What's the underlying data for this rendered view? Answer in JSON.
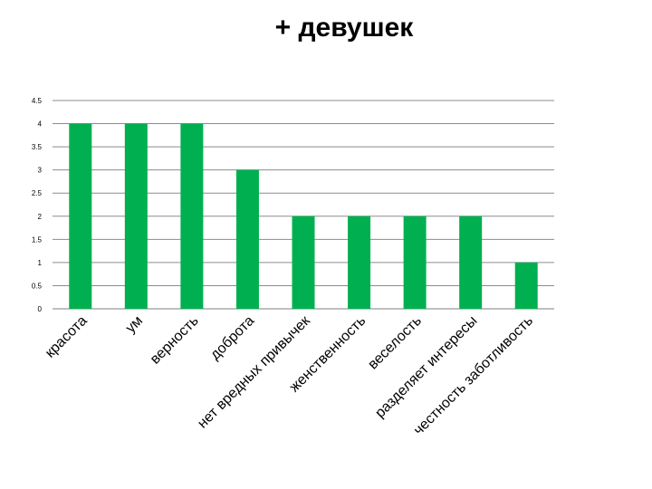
{
  "slide": {
    "title": "+ девушек"
  },
  "chart_data": {
    "type": "bar",
    "categories": [
      "красота",
      "ум",
      "верность",
      "доброта",
      "нет вредных привычек",
      "женственность",
      "веселость",
      "разделяет интересы",
      "честность заботливость"
    ],
    "values": [
      4,
      4,
      4,
      3,
      2,
      2,
      2,
      2,
      1
    ],
    "ylim": [
      0,
      4.5
    ],
    "yticks": [
      "0",
      "0.5",
      "1",
      "1.5",
      "2",
      "2.5",
      "3",
      "3.5",
      "4",
      "4.5"
    ],
    "bar_color": "#00b050",
    "grid": true,
    "legend": "none"
  }
}
